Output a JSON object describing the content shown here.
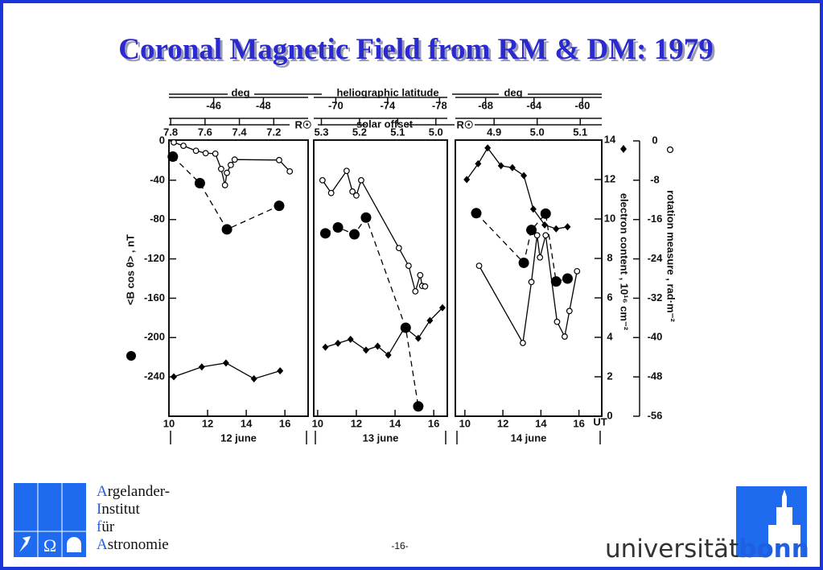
{
  "title": "Coronal Magnetic Field from RM & DM: 1979",
  "figure": {
    "deg_label": "deg",
    "latitude_label": "heliographic  latitude",
    "offset_label": "solar  offset",
    "rsun_label": "R☉",
    "unit_label": "UT",
    "ylabel": "<B cos θ> , nT",
    "y2label": "electron  content , 10¹⁶ cm⁻²",
    "y3label": "rotation  measure , rad·m⁻²"
  },
  "chart_data": [
    {
      "type": "line",
      "xlabel": "12  june",
      "xlim": [
        10,
        17.2
      ],
      "xticks": [
        10,
        12,
        14,
        16
      ],
      "x2lim": [
        -44.2,
        -49.8
      ],
      "x2ticks": [
        -46,
        -48
      ],
      "x3lim": [
        7.81,
        7.0
      ],
      "x3ticks": [
        7.8,
        7.6,
        7.4,
        7.2
      ],
      "ylim": [
        -280,
        0
      ],
      "yticks": [
        0,
        -40,
        -80,
        -120,
        -160,
        -200,
        -240
      ],
      "y2lim": [
        0,
        14
      ],
      "y3lim": [
        -56,
        0
      ],
      "series": [
        {
          "marker": "filled-circle",
          "dash": true,
          "axis": "y",
          "color": "#000",
          "x": [
            10.2,
            11.6,
            13.0,
            15.7
          ],
          "values": [
            -16,
            -43,
            -90,
            -66
          ]
        },
        {
          "marker": "diamond",
          "axis": "y2",
          "color": "#000",
          "x": [
            10.25,
            11.7,
            12.95,
            14.4,
            15.75
          ],
          "values": [
            2.0,
            2.5,
            2.7,
            1.9,
            2.3
          ]
        },
        {
          "marker": "open-circle",
          "axis": "y3",
          "color": "#000",
          "x": [
            10.25,
            10.75,
            11.4,
            11.9,
            12.4,
            12.7,
            12.9,
            13.0,
            13.2,
            13.4,
            15.7,
            16.25
          ],
          "values": [
            -0.3,
            -1.0,
            -2.0,
            -2.5,
            -2.6,
            -5.7,
            -9.0,
            -6.5,
            -4.9,
            -3.8,
            -3.9,
            -6.2
          ]
        }
      ]
    },
    {
      "type": "line",
      "xlabel": "13  june",
      "xlim": [
        9.8,
        16.7
      ],
      "xticks": [
        10,
        12,
        14,
        16
      ],
      "x2lim": [
        -68.3,
        -78.6
      ],
      "x2ticks": [
        -70,
        -74,
        -78
      ],
      "x3lim": [
        5.32,
        4.97
      ],
      "x3ticks": [
        5.3,
        5.2,
        5.1,
        {
          "value": 5,
          "label": "5.0"
        }
      ],
      "ylim": [
        -280,
        0
      ],
      "y2lim": [
        0,
        14
      ],
      "y3lim": [
        -56,
        0
      ],
      "series": [
        {
          "marker": "filled-circle",
          "dash": true,
          "axis": "y",
          "color": "#000",
          "x": [
            10.4,
            11.05,
            11.9,
            12.5,
            14.55,
            15.2
          ],
          "values": [
            -94,
            -88,
            -95,
            -78,
            -190,
            -270
          ]
        },
        {
          "marker": "diamond",
          "axis": "y2",
          "color": "#000",
          "x": [
            10.4,
            11.05,
            11.7,
            12.5,
            13.1,
            13.65,
            14.5,
            15.2,
            15.8,
            16.45
          ],
          "values": [
            3.5,
            3.7,
            3.9,
            3.35,
            3.55,
            3.1,
            4.5,
            3.95,
            4.85,
            5.5
          ]
        },
        {
          "marker": "open-circle",
          "axis": "y3",
          "color": "#000",
          "x": [
            10.25,
            10.7,
            11.5,
            11.8,
            12.0,
            12.25,
            14.2,
            14.7,
            15.05,
            15.3,
            15.4,
            15.55
          ],
          "values": [
            -8.0,
            -10.6,
            -6.1,
            -10.3,
            -11.1,
            -8.0,
            -21.8,
            -25.4,
            -30.6,
            -27.3,
            -29.5,
            -29.6
          ]
        }
      ]
    },
    {
      "type": "line",
      "xlabel": "14  june",
      "xlim": [
        9.5,
        17.2
      ],
      "xticks": [
        10,
        12,
        14,
        16
      ],
      "x2lim": [
        -70.5,
        -58.4
      ],
      "x2ticks": [
        -68,
        -64,
        -60
      ],
      "x3lim": [
        4.81,
        5.15
      ],
      "x3ticks": [
        4.9,
        {
          "value": 5,
          "label": "5.0"
        },
        5.1
      ],
      "ylim": [
        -280,
        0
      ],
      "y2lim": [
        0,
        14
      ],
      "y2ticks": [
        0,
        2,
        4,
        6,
        8,
        10,
        12,
        14
      ],
      "y3lim": [
        -56,
        0
      ],
      "y3ticks": [
        0,
        -8,
        -16,
        -24,
        -32,
        -40,
        -48,
        -56
      ],
      "series": [
        {
          "marker": "filled-circle",
          "dash": true,
          "axis": "y",
          "color": "#000",
          "x": [
            10.6,
            13.1,
            13.5,
            14.25,
            14.8,
            15.4
          ],
          "values": [
            -73.5,
            -124,
            -90.6,
            -74,
            -143,
            -140
          ]
        },
        {
          "marker": "diamond",
          "axis": "y2",
          "color": "#000",
          "x": [
            10.1,
            10.7,
            11.2,
            11.9,
            12.5,
            13.1,
            13.6,
            14.2,
            14.8,
            15.4
          ],
          "values": [
            12.0,
            12.8,
            13.6,
            12.7,
            12.6,
            12.2,
            10.5,
            9.7,
            9.5,
            9.6
          ]
        },
        {
          "marker": "open-circle",
          "axis": "y3",
          "color": "#000",
          "x": [
            10.75,
            13.05,
            13.5,
            13.8,
            13.95,
            14.25,
            14.85,
            15.25,
            15.5,
            15.9
          ],
          "values": [
            -25.4,
            -41.1,
            -28.7,
            -19.2,
            -23.7,
            -19.2,
            -36.8,
            -39.8,
            -34.6,
            -26.5
          ]
        }
      ]
    }
  ],
  "logo_left": {
    "symbol": "Ω",
    "lines": [
      {
        "initial": "A",
        "rest": "rgelander-"
      },
      {
        "initial": "I",
        "rest": "nstitut"
      },
      {
        "initial": "f",
        "rest": "ür"
      },
      {
        "initial": "A",
        "rest": "stronomie"
      }
    ]
  },
  "page_number": "-16-",
  "logo_right": {
    "text": "universität",
    "bold": "bonn"
  }
}
